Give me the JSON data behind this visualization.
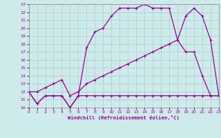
{
  "xlabel": "Windchill (Refroidissement éolien,°C)",
  "bg_color": "#ceeaea",
  "line_color": "#990099",
  "grid_color": "#aacccc",
  "xmin": 0,
  "xmax": 23,
  "ymin": 10,
  "ymax": 23,
  "line1_x": [
    0,
    1,
    2,
    3,
    4,
    5,
    6,
    7,
    8,
    9,
    10,
    11,
    12,
    13,
    14,
    15,
    16,
    17,
    18,
    19,
    20,
    21,
    22,
    23
  ],
  "line1_y": [
    12,
    10.5,
    11.5,
    11.5,
    11.5,
    10.0,
    11.5,
    17.5,
    19.5,
    20.0,
    21.5,
    22.5,
    22.5,
    22.5,
    23.0,
    22.5,
    22.5,
    22.5,
    18.5,
    21.5,
    22.5,
    21.5,
    18.5,
    11.5
  ],
  "line2_x": [
    0,
    1,
    2,
    3,
    4,
    5,
    6,
    7,
    8,
    9,
    10,
    11,
    12,
    13,
    14,
    15,
    16,
    17,
    18,
    19,
    20,
    21,
    22,
    23
  ],
  "line2_y": [
    12,
    12.0,
    12.5,
    13.0,
    13.5,
    11.5,
    12.0,
    13.0,
    13.5,
    14.0,
    14.5,
    15.0,
    15.5,
    16.0,
    16.5,
    17.0,
    17.5,
    18.0,
    18.5,
    17.0,
    17.0,
    14.0,
    11.5,
    11.5
  ],
  "line3_x": [
    0,
    1,
    2,
    3,
    4,
    5,
    6,
    7,
    8,
    9,
    10,
    11,
    12,
    13,
    14,
    15,
    16,
    17,
    18,
    19,
    20,
    21,
    22,
    23
  ],
  "line3_y": [
    12,
    10.5,
    11.5,
    11.5,
    11.5,
    10.0,
    11.5,
    11.5,
    11.5,
    11.5,
    11.5,
    11.5,
    11.5,
    11.5,
    11.5,
    11.5,
    11.5,
    11.5,
    11.5,
    11.5,
    11.5,
    11.5,
    11.5,
    11.5
  ]
}
